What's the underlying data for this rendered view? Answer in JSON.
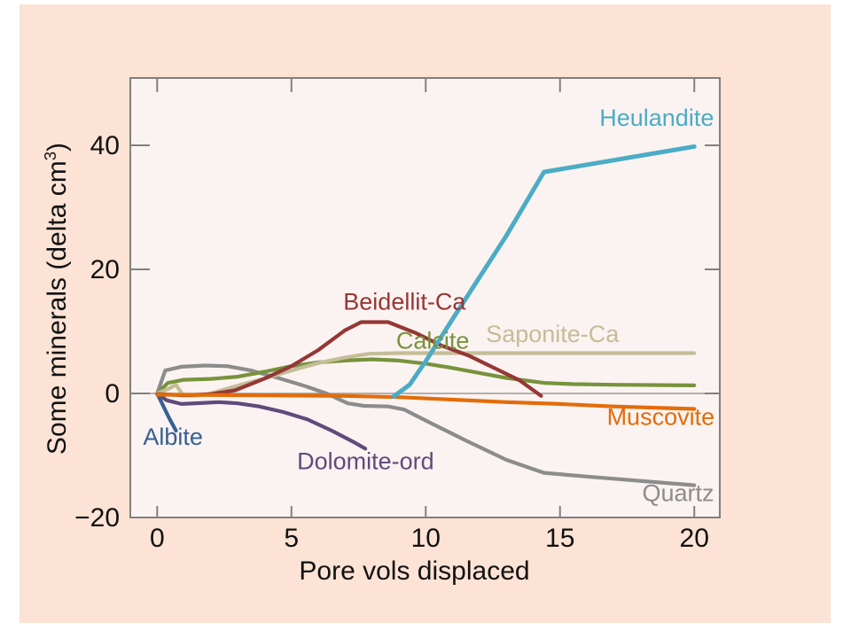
{
  "colors": {
    "page_bg": "#ffffff",
    "panel_bg": "#fce3d5",
    "plot_bg": "#fbf3f1",
    "frame": "#808080",
    "zero_line": "#9a9a9a",
    "text": "#111111"
  },
  "chart_data": {
    "type": "line",
    "title": "",
    "xlabel": "Pore vols displaced",
    "ylabel": {
      "base": "Some minerals (delta cm",
      "sup": "3",
      "close": ")"
    },
    "xlim": [
      -1,
      20.95
    ],
    "ylim": [
      -20,
      50.86
    ],
    "xticks": [
      0,
      5,
      10,
      15,
      20
    ],
    "xtick_labels": [
      "0",
      "5",
      "10",
      "15",
      "20"
    ],
    "yticks": [
      -20,
      0,
      20,
      40
    ],
    "ytick_labels": [
      "−20",
      "0",
      "20",
      "40"
    ],
    "grid": false,
    "zero_line": true,
    "legend": "inline-colored-labels",
    "series": [
      {
        "name": "Quartz",
        "color": "#8c8c8c",
        "width": 4.2,
        "points": [
          [
            0,
            0
          ],
          [
            0.3,
            3.7
          ],
          [
            0.9,
            4.3
          ],
          [
            1.8,
            4.5
          ],
          [
            2.6,
            4.4
          ],
          [
            3.5,
            3.7
          ],
          [
            4.5,
            2.5
          ],
          [
            5.5,
            1.2
          ],
          [
            6.3,
            0
          ],
          [
            7.1,
            -1.6
          ],
          [
            7.7,
            -2
          ],
          [
            8.6,
            -2.1
          ],
          [
            9.2,
            -2.6
          ],
          [
            10.2,
            -4.8
          ],
          [
            11.5,
            -7.6
          ],
          [
            13,
            -10.7
          ],
          [
            14.4,
            -12.8
          ],
          [
            16,
            -13.4
          ],
          [
            20,
            -14.8
          ]
        ],
        "label": {
          "text": "Quartz",
          "x": 19.4,
          "y": -16.1
        }
      },
      {
        "name": "Dolomite-ord",
        "color": "#604a7b",
        "width": 4.2,
        "points": [
          [
            0,
            0
          ],
          [
            0.35,
            -1.1
          ],
          [
            0.9,
            -1.7
          ],
          [
            1.6,
            -1.55
          ],
          [
            2.3,
            -1.4
          ],
          [
            3,
            -1.6
          ],
          [
            3.8,
            -2.1
          ],
          [
            4.7,
            -3
          ],
          [
            5.6,
            -4.2
          ],
          [
            6.5,
            -6
          ],
          [
            7.3,
            -7.8
          ],
          [
            7.75,
            -8.9
          ]
        ],
        "label": {
          "text": "Dolomite-ord",
          "x": 7.76,
          "y": -10.9
        }
      },
      {
        "name": "Albite",
        "color": "#376092",
        "width": 4.2,
        "points": [
          [
            0,
            0
          ],
          [
            0.2,
            -1.8
          ],
          [
            0.45,
            -4
          ],
          [
            0.7,
            -6
          ]
        ],
        "label": {
          "text": "Albite",
          "x": 0.59,
          "y": -7.0
        }
      },
      {
        "name": "Calcite",
        "color": "#77933c",
        "width": 4.2,
        "points": [
          [
            0,
            0
          ],
          [
            0.4,
            1.7
          ],
          [
            1,
            2.2
          ],
          [
            2,
            2.35
          ],
          [
            3,
            2.7
          ],
          [
            4,
            3.5
          ],
          [
            5,
            4.4
          ],
          [
            6,
            5
          ],
          [
            7,
            5.3
          ],
          [
            8,
            5.5
          ],
          [
            9,
            5.3
          ],
          [
            10,
            4.8
          ],
          [
            11,
            4.1
          ],
          [
            12,
            3.3
          ],
          [
            13,
            2.5
          ],
          [
            14.4,
            1.7
          ],
          [
            15.5,
            1.5
          ],
          [
            17,
            1.4
          ],
          [
            20,
            1.3
          ]
        ],
        "label": {
          "text": "Calcite",
          "x": 10.26,
          "y": 8.5
        }
      },
      {
        "name": "Saponite-Ca",
        "color": "#c4bd97",
        "width": 4.2,
        "points": [
          [
            0,
            0
          ],
          [
            0.45,
            0.8
          ],
          [
            0.7,
            1.4
          ],
          [
            0.95,
            -0.2
          ],
          [
            1.3,
            -0.4
          ],
          [
            1.8,
            -0.2
          ],
          [
            2.4,
            0.5
          ],
          [
            3.2,
            1.5
          ],
          [
            4,
            2.4
          ],
          [
            5,
            3.7
          ],
          [
            6,
            4.9
          ],
          [
            7,
            5.8
          ],
          [
            7.9,
            6.4
          ],
          [
            9,
            6.5
          ],
          [
            14,
            6.5
          ],
          [
            20,
            6.5
          ]
        ],
        "label": {
          "text": "Saponite-Ca",
          "x": 14.72,
          "y": 9.6
        }
      },
      {
        "name": "Beidellit-Ca",
        "color": "#953735",
        "width": 4.2,
        "points": [
          [
            0,
            -0.1
          ],
          [
            1,
            -0.3
          ],
          [
            2,
            -0.1
          ],
          [
            2.9,
            0.5
          ],
          [
            4,
            2.4
          ],
          [
            5,
            4.4
          ],
          [
            6,
            7
          ],
          [
            7,
            10.2
          ],
          [
            7.6,
            11.5
          ],
          [
            8.6,
            11.5
          ],
          [
            9.6,
            9.8
          ],
          [
            10.6,
            7.7
          ],
          [
            11.6,
            6.1
          ],
          [
            12.6,
            4
          ],
          [
            13.5,
            2.1
          ],
          [
            14.3,
            -0.4
          ]
        ],
        "label": {
          "text": "Beidellit-Ca",
          "x": 9.21,
          "y": 14.8
        }
      },
      {
        "name": "Muscovite",
        "color": "#e36c09",
        "width": 4.2,
        "points": [
          [
            0,
            -0.2
          ],
          [
            4,
            -0.3
          ],
          [
            7,
            -0.4
          ],
          [
            9,
            -0.6
          ],
          [
            11,
            -1
          ],
          [
            13,
            -1.4
          ],
          [
            15,
            -1.7
          ],
          [
            17,
            -2.1
          ],
          [
            20,
            -2.5
          ]
        ],
        "label": {
          "text": "Muscovite",
          "x": 18.75,
          "y": -3.8
        }
      },
      {
        "name": "Heulandite",
        "color": "#4bacc6",
        "width": 5,
        "points": [
          [
            8.8,
            -0.5
          ],
          [
            9.4,
            1.4
          ],
          [
            10,
            5.2
          ],
          [
            11,
            12
          ],
          [
            12,
            18.7
          ],
          [
            13,
            25.4
          ],
          [
            14.4,
            35.7
          ],
          [
            20,
            39.8
          ]
        ],
        "label": {
          "text": "Heulandite",
          "x": 18.6,
          "y": 44.4
        }
      }
    ]
  }
}
